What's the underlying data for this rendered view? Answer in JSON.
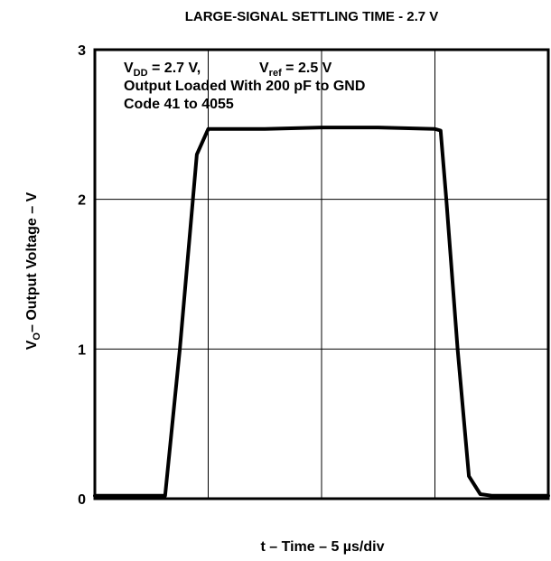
{
  "chart_data": {
    "type": "line",
    "title": "LARGE-SIGNAL SETTLING TIME - 2.7 V",
    "xlabel": "t – Time – 5 µs/div",
    "ylabel": {
      "main": "V",
      "sub": "O",
      "rest": "– Output Voltage – V"
    },
    "ylim": [
      0,
      3
    ],
    "xlim": [
      0,
      4
    ],
    "y_ticks": [
      "0",
      "1",
      "2",
      "3"
    ],
    "x_ticks": [],
    "grid": true,
    "annotations": {
      "line1": {
        "vdd_main": "V",
        "vdd_sub": "DD",
        "vdd_rest": " = 2.7 V,",
        "vref_main": "V",
        "vref_sub": "ref",
        "vref_rest": " = 2.5 V"
      },
      "line2": "Output Loaded With 200 pF to GND",
      "line3": "Code 41 to 4055"
    },
    "series": [
      {
        "x": [
          0,
          0.55,
          0.62,
          0.75,
          0.9,
          1.0,
          1.5,
          2.0,
          2.5,
          3.0,
          3.05,
          3.1,
          3.2,
          3.3,
          3.4,
          3.5,
          3.6,
          4.0
        ],
        "y": [
          0.02,
          0.02,
          0.02,
          1.0,
          2.3,
          2.47,
          2.47,
          2.48,
          2.48,
          2.47,
          2.46,
          2.0,
          1.0,
          0.15,
          0.03,
          0.02,
          0.02,
          0.02
        ]
      }
    ]
  }
}
